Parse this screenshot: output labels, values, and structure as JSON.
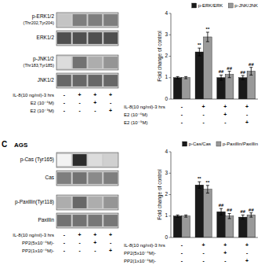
{
  "chart_data": [
    {
      "type": "heatmap",
      "series": [
        {
          "name": "p-ERK1/2",
          "sublabel": "(Thr202,Tyr204)",
          "values": [
            0.25,
            0.55,
            0.55,
            0.55
          ]
        },
        {
          "name": "ERK1/2",
          "values": [
            0.75,
            0.75,
            0.75,
            0.75
          ]
        },
        {
          "name": "p-JNK1/2",
          "sublabel": "(Thr183,Tyr185)",
          "values": [
            0.15,
            0.6,
            0.35,
            0.45
          ]
        },
        {
          "name": "JNK1/2",
          "values": [
            0.65,
            0.65,
            0.65,
            0.65
          ]
        }
      ],
      "conditions": [
        {
          "name": "IL-8(10 ng/ml)-3 hrs",
          "values": [
            "-",
            "+",
            "+",
            "+"
          ]
        },
        {
          "name": "E2 (10⁻⁶M)",
          "values": [
            "-",
            "-",
            "+",
            "-"
          ]
        },
        {
          "name": "E2 (10⁻⁹M)",
          "values": [
            "-",
            "-",
            "-",
            "+"
          ]
        }
      ]
    },
    {
      "type": "bar",
      "ylabel": "Fold change of control",
      "categories": [
        null,
        null,
        null,
        null
      ],
      "ylim": [
        0,
        4
      ],
      "yticks": [
        0,
        1,
        2,
        3,
        4
      ],
      "grid": false,
      "legend": "upper right",
      "series": [
        {
          "name": "p-ERK/ERK",
          "color": "#1a1a1a",
          "values": [
            1.0,
            2.2,
            1.0,
            1.0
          ],
          "errors": [
            0.05,
            0.18,
            0.12,
            0.1
          ],
          "sig_labels": [
            null,
            "**",
            "##",
            "##"
          ]
        },
        {
          "name": "p-JNK/JNK",
          "color": "#999999",
          "values": [
            1.0,
            2.9,
            1.15,
            1.3
          ],
          "errors": [
            0.05,
            0.22,
            0.15,
            0.18
          ],
          "sig_labels": [
            null,
            "**",
            "##",
            "##"
          ]
        }
      ],
      "conditions": [
        {
          "name": "IL-8(10 ng/ml)-3 hrs",
          "values": [
            "-",
            "+",
            "+",
            "+"
          ]
        },
        {
          "name": "E2 (10⁻⁶M)",
          "values": [
            "-",
            "-",
            "+",
            "-"
          ]
        },
        {
          "name": "E2 (10⁻⁹M)",
          "values": [
            "-",
            "-",
            "-",
            "+"
          ]
        }
      ]
    },
    {
      "type": "heatmap",
      "panel_label": "C",
      "title": "AGS",
      "series": [
        {
          "name": "p-Cas (Tyr165)",
          "values": [
            0.05,
            0.9,
            0.15,
            0.2
          ]
        },
        {
          "name": "Cas",
          "values": [
            0.55,
            0.6,
            0.5,
            0.55
          ]
        },
        {
          "name": "p-Paxillin(Tyr118)",
          "values": [
            0.35,
            0.65,
            0.35,
            0.45
          ]
        },
        {
          "name": "Paxillin",
          "values": [
            0.6,
            0.6,
            0.58,
            0.58
          ]
        }
      ],
      "conditions": [
        {
          "name": "IL-8(10 ng/ml)-3 hrs",
          "values": [
            "-",
            "+",
            "+",
            "+"
          ]
        },
        {
          "name": "PP2(5x10⁻⁶M)-",
          "values": [
            "-",
            "-",
            "+",
            "-"
          ]
        },
        {
          "name": "PP2(1x10⁻⁶M)-",
          "values": [
            "-",
            "-",
            "-",
            "+"
          ]
        }
      ]
    },
    {
      "type": "bar",
      "ylabel": "Fold change of control",
      "categories": [
        null,
        null,
        null,
        null
      ],
      "ylim": [
        0,
        4
      ],
      "yticks": [
        0,
        1,
        2,
        3,
        4
      ],
      "grid": false,
      "legend": "upper right",
      "series": [
        {
          "name": "p-Cas/Cas",
          "color": "#1a1a1a",
          "values": [
            1.0,
            2.45,
            1.2,
            0.95
          ],
          "errors": [
            0.05,
            0.15,
            0.15,
            0.1
          ],
          "sig_labels": [
            null,
            "**",
            "##",
            "##"
          ]
        },
        {
          "name": "p-Paxillin/Paxillin",
          "color": "#999999",
          "values": [
            1.0,
            2.25,
            1.0,
            1.05
          ],
          "errors": [
            0.05,
            0.18,
            0.12,
            0.1
          ],
          "sig_labels": [
            null,
            "**",
            "##",
            "##"
          ]
        }
      ],
      "conditions": [
        {
          "name": "IL-8(10 ng/ml)-3 hrs",
          "values": [
            "-",
            "+",
            "+",
            "+"
          ]
        },
        {
          "name": "PP2(5x10⁻⁶M)-",
          "values": [
            "-",
            "-",
            "+",
            "-"
          ]
        },
        {
          "name": "PP2(1x10⁻⁶M)-",
          "values": [
            "-",
            "-",
            "-",
            "+"
          ]
        }
      ]
    }
  ]
}
